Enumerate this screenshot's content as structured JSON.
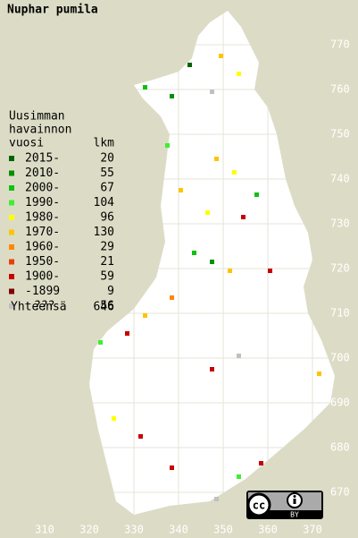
{
  "title": "Nuphar pumila",
  "legend": {
    "heading": [
      "Uusimman",
      "havainnon",
      "vuosi"
    ],
    "count_heading": "lkm",
    "rows": [
      {
        "label": "2015-",
        "count": 20,
        "color": "#006400"
      },
      {
        "label": "2010-",
        "count": 55,
        "color": "#009000"
      },
      {
        "label": "2000-",
        "count": 67,
        "color": "#10c010"
      },
      {
        "label": "1990-",
        "count": 104,
        "color": "#40ee30"
      },
      {
        "label": "1980-",
        "count": 96,
        "color": "#ffff00"
      },
      {
        "label": "1970-",
        "count": 130,
        "color": "#ffc400"
      },
      {
        "label": "1960-",
        "count": 29,
        "color": "#ff8800"
      },
      {
        "label": "1950-",
        "count": 21,
        "color": "#e84000"
      },
      {
        "label": "1900-",
        "count": 59,
        "color": "#c80000"
      },
      {
        "label": "-1899",
        "count": 9,
        "color": "#800000"
      },
      {
        "label": "???",
        "count": 56,
        "color": "#c0c0c0"
      }
    ],
    "total": {
      "label": "Yhteensä",
      "count": 646
    }
  },
  "grid": {
    "y_labels": [
      770,
      760,
      750,
      740,
      730,
      720,
      710,
      700,
      690,
      680,
      670
    ],
    "x_labels": [
      310,
      320,
      330,
      340,
      350,
      360,
      370
    ]
  },
  "license": {
    "cc": "cc",
    "by": "BY"
  }
}
